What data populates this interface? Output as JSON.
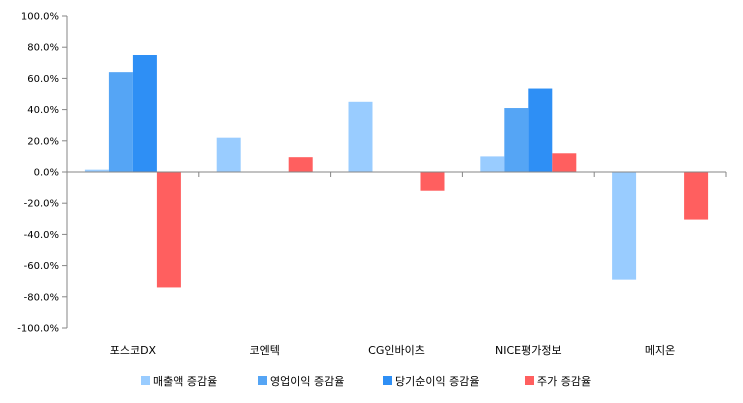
{
  "chart_data": {
    "type": "bar",
    "categories": [
      "포스코DX",
      "코엔텍",
      "CG인바이츠",
      "NICE평가정보",
      "메지온"
    ],
    "series": [
      {
        "name": "매출액 증감율",
        "color": "#99ccff",
        "values": [
          1.5,
          22.0,
          45.0,
          10.0,
          -69.0
        ]
      },
      {
        "name": "영업이익 증감율",
        "color": "#55a5f5",
        "values": [
          64.0,
          null,
          null,
          41.0,
          null
        ]
      },
      {
        "name": "당기순이익 증감율",
        "color": "#2e8ff5",
        "values": [
          75.0,
          null,
          null,
          53.5,
          null
        ]
      },
      {
        "name": "주가 증감율",
        "color": "#ff5f5f",
        "values": [
          -74.0,
          9.5,
          -12.0,
          12.0,
          -30.5
        ]
      }
    ],
    "ylim": [
      -100,
      100
    ],
    "ytick_step": 20,
    "ytick_labels": [
      "100.0%",
      "80.0%",
      "60.0%",
      "40.0%",
      "20.0%",
      "0.0%",
      "-20.0%",
      "-40.0%",
      "-60.0%",
      "-80.0%",
      "-100.0%"
    ],
    "grid": false,
    "legend": "bottom"
  }
}
